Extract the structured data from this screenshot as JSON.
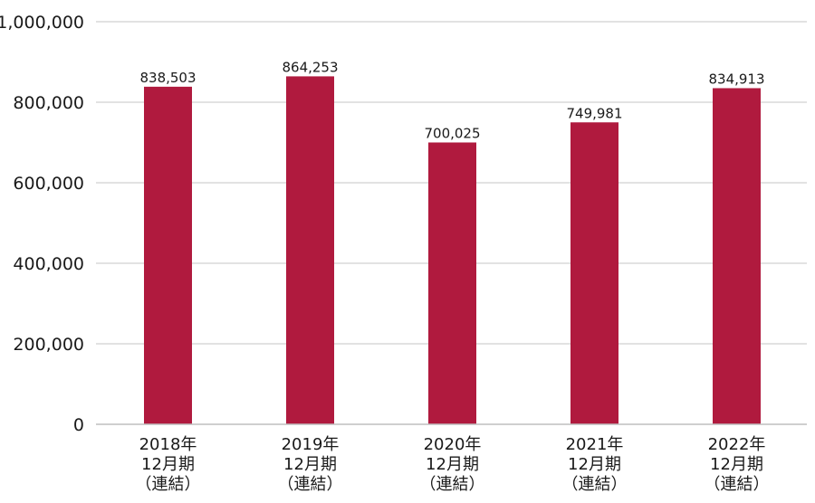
{
  "chart_data": {
    "type": "bar",
    "categories": [
      [
        "2018年",
        "12月期",
        "（連結）"
      ],
      [
        "2019年",
        "12月期",
        "（連結）"
      ],
      [
        "2020年",
        "12月期",
        "（連結）"
      ],
      [
        "2021年",
        "12月期",
        "（連結）"
      ],
      [
        "2022年",
        "12月期",
        "（連結）"
      ]
    ],
    "values": [
      838503,
      864253,
      700025,
      749981,
      834913
    ],
    "value_labels": [
      "838,503",
      "864,253",
      "700,025",
      "749,981",
      "834,913"
    ],
    "y_ticks": [
      0,
      200000,
      400000,
      600000,
      800000,
      1000000
    ],
    "y_tick_labels": [
      "0",
      "200,000",
      "400,000",
      "600,000",
      "800,000",
      "1,000,000"
    ],
    "ylim": [
      0,
      1000000
    ],
    "grid": true,
    "legend": "none",
    "bar_color": "#b01a3e",
    "title": "",
    "xlabel": "",
    "ylabel": ""
  }
}
